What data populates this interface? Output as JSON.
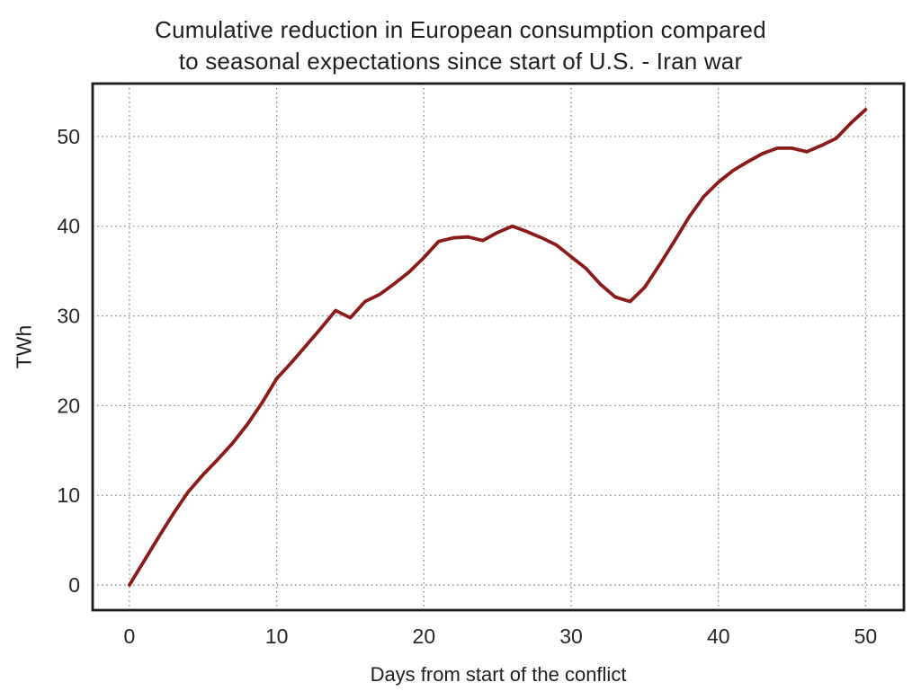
{
  "figure": {
    "title_line1": "Cumulative reduction in European consumption compared",
    "title_line2": "to seasonal expectations since start of U.S. - Iran war"
  },
  "chart_data": {
    "type": "line",
    "title": "Cumulative reduction in European consumption compared to seasonal expectations since start of U.S. - Iran war",
    "xlabel": "Days from start of the conflict",
    "ylabel": "TWh",
    "x": [
      0,
      1,
      2,
      3,
      4,
      5,
      6,
      7,
      8,
      9,
      10,
      11,
      12,
      13,
      14,
      15,
      16,
      17,
      18,
      19,
      20,
      21,
      22,
      23,
      24,
      25,
      26,
      27,
      28,
      29,
      30,
      31,
      32,
      33,
      34,
      35,
      36,
      37,
      38,
      39,
      40,
      41,
      42,
      43,
      44,
      45,
      46,
      47,
      48,
      49,
      50
    ],
    "values": [
      0.0,
      2.7,
      5.4,
      8.0,
      10.4,
      12.3,
      14.0,
      15.8,
      17.9,
      20.3,
      23.0,
      24.8,
      26.7,
      28.6,
      30.6,
      29.8,
      31.6,
      32.4,
      33.6,
      34.9,
      36.5,
      38.3,
      38.7,
      38.8,
      38.4,
      39.3,
      40.0,
      39.4,
      38.7,
      37.9,
      36.6,
      35.3,
      33.5,
      32.1,
      31.6,
      33.2,
      35.7,
      38.3,
      41.0,
      43.3,
      44.9,
      46.2,
      47.2,
      48.1,
      48.7,
      48.7,
      48.3,
      49.0,
      49.8,
      51.5,
      53.0
    ],
    "xticks": [
      0,
      10,
      20,
      30,
      40,
      50
    ],
    "yticks": [
      0,
      10,
      20,
      30,
      40,
      50
    ],
    "xlim": [
      -2.5,
      52.6
    ],
    "ylim": [
      -2.8,
      55.9
    ],
    "grid": "dotted",
    "legend": "none",
    "colors": {
      "line": "#8b1a1a",
      "grid": "#8a8a8a",
      "frame": "#1a1a1a",
      "tick_text": "#262626"
    },
    "line_width": 3.8
  }
}
